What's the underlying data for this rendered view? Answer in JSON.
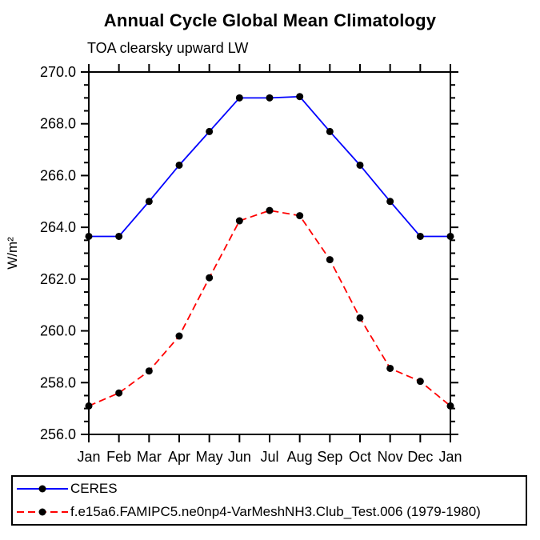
{
  "chart": {
    "title": "Annual Cycle Global Mean Climatology",
    "subtitle": "TOA clearsky upward LW"
  },
  "chart_data": {
    "type": "line",
    "x": [
      "Jan",
      "Feb",
      "Mar",
      "Apr",
      "May",
      "Jun",
      "Jul",
      "Aug",
      "Sep",
      "Oct",
      "Nov",
      "Dec",
      "Jan"
    ],
    "xlabel": "",
    "ylabel": "W/m²",
    "ylim": [
      256.0,
      270.0
    ],
    "yticks": [
      256.0,
      258.0,
      260.0,
      262.0,
      264.0,
      266.0,
      268.0,
      270.0
    ],
    "ytick_minor_step": 0.5,
    "grid": false,
    "legend_position": "bottom-left",
    "marker_color": "#000000",
    "series": [
      {
        "name": "CERES",
        "color": "#0000ff",
        "style": "solid",
        "marker": "filled-circle",
        "values": [
          263.65,
          263.65,
          265.0,
          266.4,
          267.7,
          269.0,
          269.0,
          269.05,
          267.7,
          266.4,
          265.0,
          263.65,
          263.65
        ]
      },
      {
        "name": "f.e15a6.FAMIPC5.ne0np4-VarMeshNH3.Club_Test.006 (1979-1980)",
        "color": "#ff0000",
        "style": "dashed",
        "marker": "filled-circle",
        "values": [
          257.1,
          257.6,
          258.45,
          259.8,
          262.05,
          264.25,
          264.65,
          264.45,
          262.75,
          260.5,
          258.55,
          258.05,
          257.1
        ]
      }
    ]
  }
}
